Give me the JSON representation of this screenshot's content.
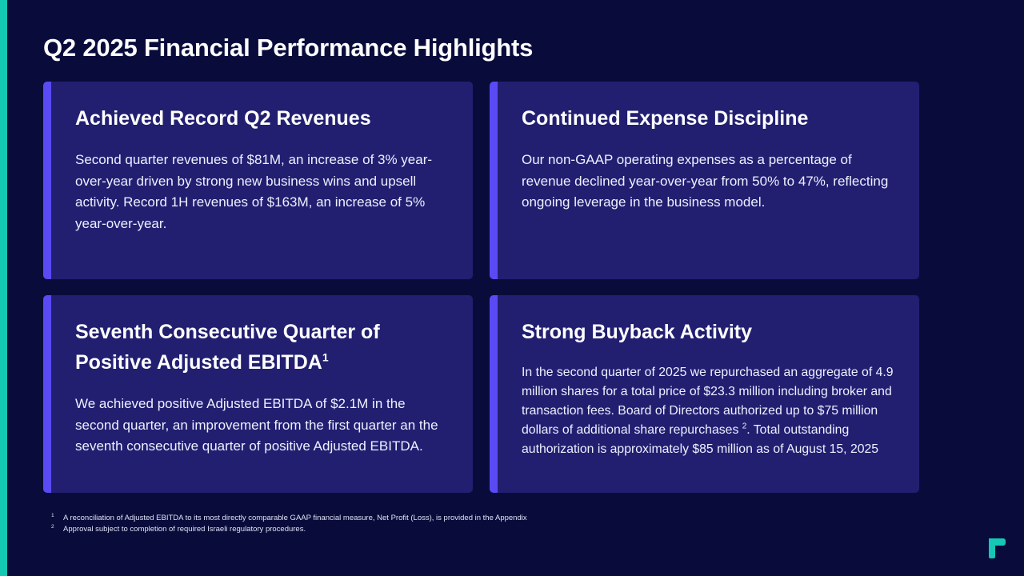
{
  "slide": {
    "title": "Q2 2025 Financial Performance Highlights"
  },
  "cards": [
    {
      "title": "Achieved Record Q2 Revenues",
      "body": "Second quarter revenues of $81M, an increase of 3% year-over-year driven by strong new business wins and upsell activity. Record 1H revenues of $163M, an increase of 5% year-over-year."
    },
    {
      "title": "Continued Expense Discipline",
      "body": "Our non-GAAP operating expenses as a percentage of revenue declined year-over-year from 50% to 47%, reflecting ongoing leverage in the business model."
    },
    {
      "title": "Seventh Consecutive Quarter of Positive Adjusted EBITDA",
      "title_footnote": "1",
      "body": "We achieved positive Adjusted EBITDA of $2.1M in the second quarter, an improvement from the first quarter an the seventh consecutive quarter of positive Adjusted EBITDA."
    },
    {
      "title": "Strong Buyback Activity",
      "body_part1": "In the second quarter of 2025 we repurchased an aggregate of 4.9 million shares for a total price of $23.3 million including broker and transaction fees.  Board of Directors authorized up to $75 million dollars of additional share repurchases ",
      "body_footnote": "2",
      "body_part2": ". Total outstanding authorization is approximately $85 million as of August 15, 2025"
    }
  ],
  "footnotes": [
    {
      "num": "1",
      "text": "A reconciliation of Adjusted EBITDA to its most directly comparable GAAP financial measure, Net Profit (Loss), is provided in the Appendix"
    },
    {
      "num": "2",
      "text": "Approval subject to completion of required Israeli regulatory procedures."
    }
  ],
  "colors": {
    "background": "#090c3b",
    "card": "#221f71",
    "card_accent": "#5a4af4",
    "left_accent": "#14c8b4"
  },
  "logo": {
    "icon": "company-logo-icon"
  }
}
